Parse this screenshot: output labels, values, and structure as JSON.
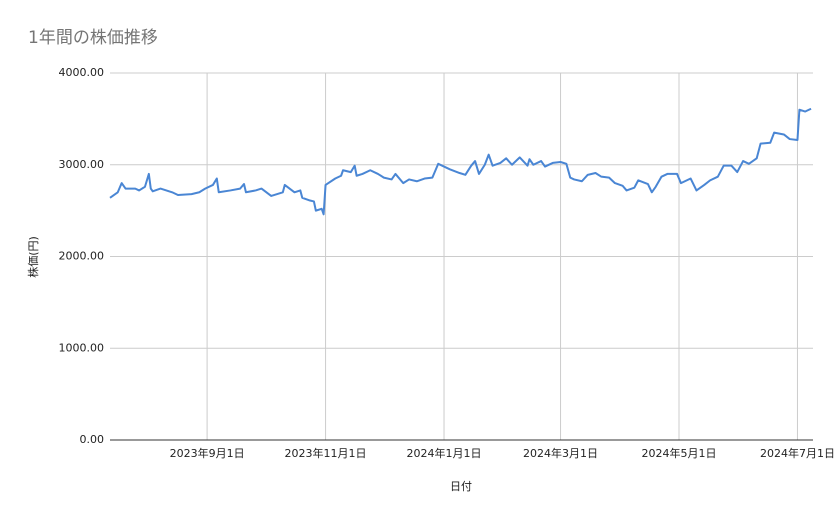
{
  "chart_data": {
    "type": "line",
    "title": "1年間の株価推移",
    "x_label": "日付",
    "y_label": "株価(円)",
    "color": "#4a86d4",
    "grid": true,
    "xlim": [
      "2023-07-13",
      "2024-07-09"
    ],
    "xticks": [
      {
        "value": "2023-09-01",
        "label": "2023年9月1日"
      },
      {
        "value": "2023-11-01",
        "label": "2023年11月1日"
      },
      {
        "value": "2024-01-01",
        "label": "2024年1月1日"
      },
      {
        "value": "2024-03-01",
        "label": "2024年3月1日"
      },
      {
        "value": "2024-05-01",
        "label": "2024年5月1日"
      },
      {
        "value": "2024-07-01",
        "label": "2024年7月1日"
      }
    ],
    "ylim": [
      0,
      4000
    ],
    "yticks": [
      {
        "value": 0,
        "label": "0.00"
      },
      {
        "value": 1000,
        "label": "1000.00"
      },
      {
        "value": 2000,
        "label": "2000.00"
      },
      {
        "value": 3000,
        "label": "3000.00"
      },
      {
        "value": 4000,
        "label": "4000.00"
      }
    ],
    "x": [
      "2023-07-13",
      "2023-07-17",
      "2023-07-19",
      "2023-07-21",
      "2023-07-26",
      "2023-07-28",
      "2023-07-31",
      "2023-08-02",
      "2023-08-03",
      "2023-08-04",
      "2023-08-08",
      "2023-08-14",
      "2023-08-17",
      "2023-08-24",
      "2023-08-28",
      "2023-08-31",
      "2023-09-04",
      "2023-09-06",
      "2023-09-07",
      "2023-09-13",
      "2023-09-18",
      "2023-09-20",
      "2023-09-21",
      "2023-09-26",
      "2023-09-29",
      "2023-10-04",
      "2023-10-10",
      "2023-10-11",
      "2023-10-16",
      "2023-10-19",
      "2023-10-20",
      "2023-10-24",
      "2023-10-26",
      "2023-10-27",
      "2023-10-30",
      "2023-10-31",
      "2023-11-01",
      "2023-11-06",
      "2023-11-09",
      "2023-11-10",
      "2023-11-14",
      "2023-11-16",
      "2023-11-17",
      "2023-11-20",
      "2023-11-24",
      "2023-11-28",
      "2023-12-01",
      "2023-12-05",
      "2023-12-07",
      "2023-12-11",
      "2023-12-14",
      "2023-12-18",
      "2023-12-22",
      "2023-12-26",
      "2023-12-29",
      "2024-01-04",
      "2024-01-09",
      "2024-01-12",
      "2024-01-15",
      "2024-01-17",
      "2024-01-19",
      "2024-01-22",
      "2024-01-24",
      "2024-01-26",
      "2024-01-30",
      "2024-02-02",
      "2024-02-05",
      "2024-02-09",
      "2024-02-13",
      "2024-02-14",
      "2024-02-16",
      "2024-02-20",
      "2024-02-22",
      "2024-02-26",
      "2024-03-01",
      "2024-03-04",
      "2024-03-06",
      "2024-03-08",
      "2024-03-12",
      "2024-03-15",
      "2024-03-19",
      "2024-03-22",
      "2024-03-26",
      "2024-03-29",
      "2024-04-02",
      "2024-04-04",
      "2024-04-08",
      "2024-04-10",
      "2024-04-15",
      "2024-04-17",
      "2024-04-19",
      "2024-04-22",
      "2024-04-25",
      "2024-04-30",
      "2024-05-02",
      "2024-05-07",
      "2024-05-10",
      "2024-05-14",
      "2024-05-17",
      "2024-05-21",
      "2024-05-24",
      "2024-05-28",
      "2024-05-31",
      "2024-06-03",
      "2024-06-06",
      "2024-06-10",
      "2024-06-12",
      "2024-06-17",
      "2024-06-19",
      "2024-06-24",
      "2024-06-27",
      "2024-07-01",
      "2024-07-02",
      "2024-07-05",
      "2024-07-08"
    ],
    "values": [
      2640,
      2700,
      2800,
      2740,
      2740,
      2720,
      2760,
      2900,
      2740,
      2710,
      2740,
      2700,
      2670,
      2680,
      2700,
      2740,
      2780,
      2850,
      2700,
      2720,
      2740,
      2790,
      2700,
      2720,
      2740,
      2660,
      2700,
      2780,
      2700,
      2720,
      2640,
      2610,
      2600,
      2500,
      2520,
      2460,
      2780,
      2850,
      2880,
      2940,
      2920,
      2990,
      2880,
      2900,
      2940,
      2900,
      2860,
      2840,
      2900,
      2800,
      2840,
      2820,
      2850,
      2860,
      3010,
      2950,
      2910,
      2890,
      2990,
      3040,
      2900,
      3000,
      3110,
      2990,
      3020,
      3070,
      3000,
      3080,
      2990,
      3060,
      3000,
      3040,
      2980,
      3020,
      3030,
      3010,
      2860,
      2840,
      2820,
      2890,
      2910,
      2870,
      2860,
      2800,
      2770,
      2720,
      2750,
      2830,
      2790,
      2700,
      2760,
      2870,
      2900,
      2900,
      2800,
      2850,
      2720,
      2780,
      2830,
      2870,
      2990,
      2990,
      2920,
      3040,
      3010,
      3070,
      3230,
      3240,
      3350,
      3330,
      3280,
      3270,
      3600,
      3580,
      3610
    ]
  }
}
